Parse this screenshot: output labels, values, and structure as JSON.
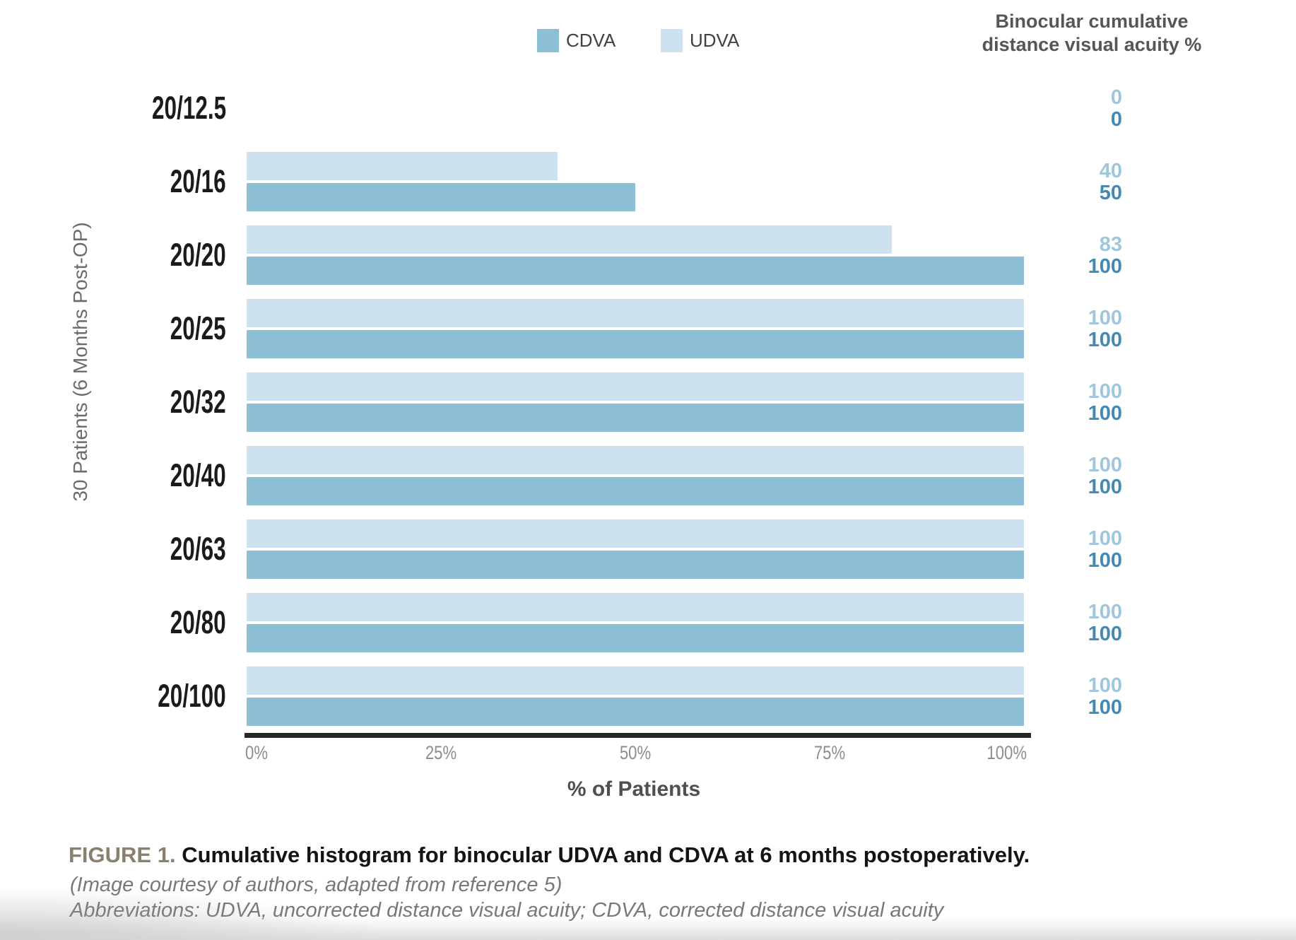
{
  "legend": {
    "items": [
      {
        "label": "CDVA",
        "color": "#8CBED6"
      },
      {
        "label": "UDVA",
        "color": "#CDE2EE"
      }
    ]
  },
  "right_header": {
    "line1": "Binocular cumulative",
    "line2": "distance visual acuity %"
  },
  "chart_data": {
    "type": "bar",
    "orientation": "horizontal",
    "title": "Binocular cumulative distance visual acuity %",
    "categories": [
      "20/12.5",
      "20/16",
      "20/20",
      "20/25",
      "20/32",
      "20/40",
      "20/63",
      "20/80",
      "20/100"
    ],
    "series": [
      {
        "name": "UDVA",
        "values": [
          0,
          40,
          83,
          100,
          100,
          100,
          100,
          100,
          100
        ],
        "color": "#CDE2EE",
        "value_label_color": "#9EC6DD"
      },
      {
        "name": "CDVA",
        "values": [
          0,
          50,
          100,
          100,
          100,
          100,
          100,
          100,
          100
        ],
        "color": "#8CBED6",
        "value_label_color": "#4389B4"
      }
    ],
    "bar_row_order": [
      "UDVA",
      "CDVA"
    ],
    "xlabel": "% of Patients",
    "ylabel": "30 Patients (6 Months Post-OP)",
    "xlim": [
      0,
      100
    ],
    "x_ticks": [
      "0%",
      "25%",
      "50%",
      "75%",
      "100%"
    ],
    "grid": false,
    "legend_position": "top",
    "value_labels_shown": true
  },
  "colors": {
    "axis_line": "#272727",
    "figure_label": "#8A806E"
  },
  "caption": {
    "figure_label": "FIGURE 1.",
    "title": " Cumulative histogram for binocular UDVA and CDVA at 6 months postoperatively.",
    "credit": "(Image courtesy of authors, adapted from reference 5)",
    "abbreviations": "Abbreviations: UDVA, uncorrected distance visual acuity; CDVA, corrected distance visual acuity"
  }
}
